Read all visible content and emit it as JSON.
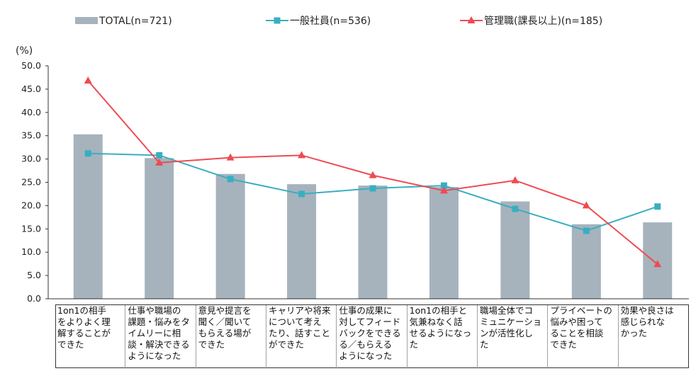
{
  "chart_data": {
    "type": "bar",
    "unit_label": "(%)",
    "ylim": [
      0,
      50
    ],
    "yticks": [
      "0.0",
      "5.0",
      "10.0",
      "15.0",
      "20.0",
      "25.0",
      "30.0",
      "35.0",
      "40.0",
      "45.0",
      "50.0"
    ],
    "categories": [
      "1on1の相手\nをよりよく理\n解することが\nできた",
      "仕事や職場の\n課題・悩みをタ\nイムリーに相\n談・解決できる\nようになった",
      "意見や提言を\n聞く／聞いて\nもらえる場が\nできた",
      "キャリアや将来\nについて考え\nたり、話すこと\nができた",
      "仕事の成果に\n対してフィード\nバックをできる\nる／もらえる\nようになった",
      "1on1の相手と\n気兼ねなく話\nせるようになっ\nた",
      "職場全体でコ\nミュニケーショ\nンが活性化し\nた",
      "プライベートの\n悩みや困って\nることを相談\nできた",
      "効果や良さは\n感じられな\nかった"
    ],
    "series": [
      {
        "name": "TOTAL(n=721)",
        "kind": "bar",
        "color": "#a6b3bd",
        "values": [
          35.3,
          30.2,
          26.8,
          24.6,
          24.3,
          24.0,
          20.9,
          16.0,
          16.4
        ]
      },
      {
        "name": "一般社員(n=536)",
        "kind": "line",
        "marker": "square",
        "color": "#3aaec1",
        "values": [
          31.2,
          30.8,
          25.7,
          22.5,
          23.7,
          24.3,
          19.3,
          14.6,
          19.8
        ]
      },
      {
        "name": "管理職(課長以上)(n=185)",
        "kind": "line",
        "marker": "triangle",
        "color": "#ef4b52",
        "values": [
          46.8,
          29.2,
          30.3,
          30.8,
          26.5,
          23.2,
          25.4,
          20.0,
          7.4
        ]
      }
    ]
  }
}
